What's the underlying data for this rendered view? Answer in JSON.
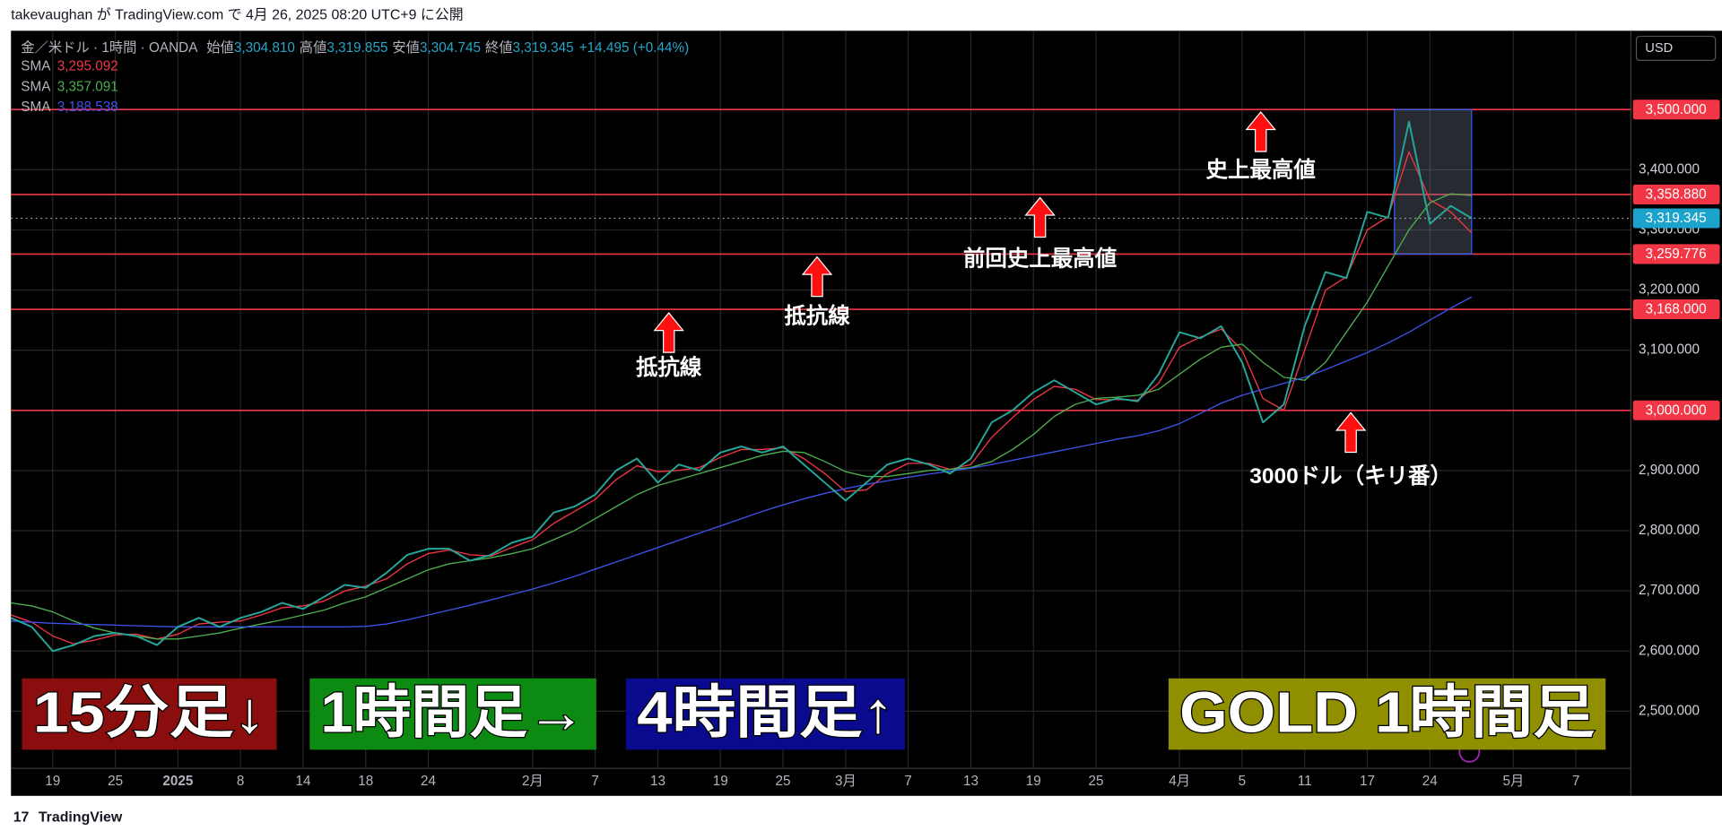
{
  "published": "takevaughan が TradingView.com で 4月 26, 2025 08:20 UTC+9 に公開",
  "footer": "TradingView",
  "chart_data": {
    "type": "line",
    "currency": "USD",
    "legend": {
      "symbol": "金／米ドル · 1時間 · OANDA",
      "items": [
        {
          "key": "始値",
          "value": "3,304.810"
        },
        {
          "key": "高値",
          "value": "3,319.855"
        },
        {
          "key": "安値",
          "value": "3,304.745"
        },
        {
          "key": "終値",
          "value": "3,319.345"
        }
      ],
      "change": "+14.495 (+0.44%)"
    },
    "categories": [
      null,
      null,
      "19",
      null,
      null,
      "25",
      null,
      null,
      "2025",
      null,
      null,
      "8",
      null,
      null,
      "14",
      null,
      null,
      "18",
      null,
      null,
      "24",
      null,
      null,
      null,
      null,
      "2月",
      null,
      null,
      "7",
      null,
      null,
      "13",
      null,
      null,
      "19",
      null,
      null,
      "25",
      null,
      null,
      "3月",
      null,
      null,
      "7",
      null,
      null,
      "13",
      null,
      null,
      "19",
      null,
      null,
      "25",
      null,
      null,
      null,
      "4月",
      null,
      null,
      "5",
      null,
      null,
      "11",
      null,
      null,
      "17",
      null,
      null,
      "24",
      null,
      null,
      null,
      "5月",
      null,
      null,
      "7",
      null
    ],
    "values": [
      2655,
      2640,
      2600,
      2610,
      2625,
      2630,
      2625,
      2610,
      2640,
      2655,
      2640,
      2655,
      2665,
      2680,
      2670,
      2690,
      2710,
      2705,
      2730,
      2760,
      2770,
      2770,
      2750,
      2760,
      2780,
      2790,
      2830,
      2840,
      2860,
      2900,
      2920,
      2880,
      2910,
      2900,
      2930,
      2940,
      2930,
      2940,
      2910,
      2880,
      2850,
      2880,
      2910,
      2920,
      2910,
      2895,
      2920,
      2980,
      3000,
      3030,
      3050,
      3030,
      3010,
      3020,
      3015,
      3060,
      3130,
      3120,
      3140,
      3080,
      2980,
      3010,
      3140,
      3230,
      3220,
      3330,
      3320,
      3480,
      3310,
      3340,
      3319.345,
      null,
      null,
      null,
      null,
      null,
      null
    ],
    "color": "#26a69a",
    "series": [
      {
        "name": "SMA",
        "color": "#f23645",
        "last_label": "3,295.092",
        "values": [
          2660,
          2648,
          2625,
          2612,
          2618,
          2627,
          2628,
          2620,
          2628,
          2645,
          2648,
          2650,
          2660,
          2672,
          2675,
          2683,
          2700,
          2708,
          2720,
          2745,
          2762,
          2768,
          2760,
          2758,
          2772,
          2785,
          2812,
          2832,
          2852,
          2885,
          2908,
          2898,
          2900,
          2905,
          2922,
          2935,
          2935,
          2938,
          2920,
          2895,
          2865,
          2868,
          2895,
          2912,
          2912,
          2902,
          2910,
          2955,
          2988,
          3018,
          3040,
          3035,
          3018,
          3018,
          3017,
          3045,
          3105,
          3122,
          3135,
          3100,
          3020,
          3000,
          3100,
          3200,
          3222,
          3300,
          3322,
          3430,
          3350,
          3330,
          3295.092,
          null,
          null,
          null,
          null,
          null,
          null
        ]
      },
      {
        "name": "SMA",
        "color": "#4caf50",
        "last_label": "3,357.091",
        "values": [
          2680,
          2675,
          2665,
          2650,
          2638,
          2630,
          2625,
          2620,
          2620,
          2625,
          2630,
          2638,
          2645,
          2652,
          2660,
          2668,
          2680,
          2690,
          2705,
          2720,
          2735,
          2745,
          2750,
          2755,
          2762,
          2770,
          2785,
          2800,
          2820,
          2840,
          2860,
          2875,
          2885,
          2895,
          2905,
          2915,
          2925,
          2932,
          2930,
          2915,
          2898,
          2890,
          2890,
          2895,
          2900,
          2902,
          2905,
          2915,
          2935,
          2960,
          2990,
          3010,
          3020,
          3022,
          3025,
          3035,
          3060,
          3085,
          3105,
          3110,
          3080,
          3055,
          3050,
          3080,
          3130,
          3180,
          3240,
          3300,
          3345,
          3360,
          3357.091,
          null,
          null,
          null,
          null,
          null,
          null
        ]
      },
      {
        "name": "SMA",
        "color": "#3f51e8",
        "last_label": "3,188.538",
        "values": [
          2650,
          2648,
          2646,
          2645,
          2644,
          2643,
          2642,
          2641,
          2640,
          2640,
          2640,
          2640,
          2640,
          2640,
          2640,
          2640,
          2640,
          2641,
          2645,
          2652,
          2660,
          2668,
          2676,
          2685,
          2694,
          2703,
          2713,
          2724,
          2736,
          2748,
          2760,
          2772,
          2784,
          2796,
          2808,
          2820,
          2832,
          2843,
          2853,
          2862,
          2870,
          2877,
          2883,
          2889,
          2894,
          2899,
          2904,
          2910,
          2917,
          2924,
          2931,
          2938,
          2945,
          2952,
          2958,
          2966,
          2978,
          2995,
          3012,
          3025,
          3035,
          3045,
          3055,
          3068,
          3082,
          3096,
          3112,
          3130,
          3150,
          3170,
          3188.538,
          null,
          null,
          null,
          null,
          null,
          null
        ]
      }
    ],
    "ylim": [
      2414,
      3631
    ],
    "yticks": [
      {
        "value": 2500,
        "label": "2,500.000"
      },
      {
        "value": 2600,
        "label": "2,600.000"
      },
      {
        "value": 2700,
        "label": "2,700.000"
      },
      {
        "value": 2800,
        "label": "2,800.000"
      },
      {
        "value": 2900,
        "label": "2,900.000"
      },
      {
        "value": 3000,
        "label": "3,000.000"
      },
      {
        "value": 3100,
        "label": "3,100.000"
      },
      {
        "value": 3200,
        "label": "3,200.000"
      },
      {
        "value": 3300,
        "label": "3,300.000"
      },
      {
        "value": 3400,
        "label": "3,400.000"
      },
      {
        "value": 3500,
        "label": "3,500.000"
      }
    ],
    "grid": true,
    "hlines": [
      {
        "value": 3500,
        "label": "3,500.000",
        "color": "#f23645"
      },
      {
        "value": 3358.88,
        "label": "3,358.880",
        "color": "#f23645"
      },
      {
        "value": 3259.776,
        "label": "3,259.776",
        "color": "#f23645"
      },
      {
        "value": 3168,
        "label": "3,168.000",
        "color": "#f23645"
      },
      {
        "value": 3000,
        "label": "3,000.000",
        "color": "#f23645"
      }
    ],
    "last_price": {
      "value": 3319.345,
      "label": "3,319.345",
      "color": "#1ca3cc"
    },
    "annotations": [
      "史上最高値",
      "前回史上最高値",
      "抵抗線",
      "抵抗線",
      "3000ドル（キリ番）"
    ],
    "banners": [
      {
        "text": "15分足↓",
        "color": "#8a0e0e"
      },
      {
        "text": "1時間足→",
        "color": "#0c8a12"
      },
      {
        "text": "4時間足↑",
        "color": "#0a0a8e"
      },
      {
        "text": "GOLD 1時間足",
        "color": "#8f8f00"
      }
    ]
  }
}
